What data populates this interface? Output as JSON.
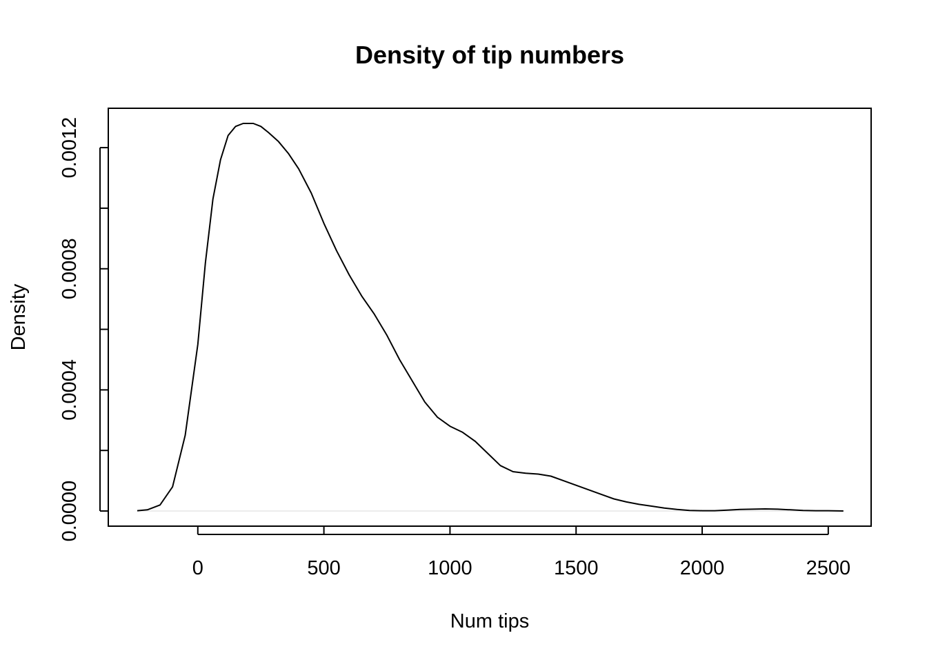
{
  "chart_data": {
    "type": "line",
    "title": "Density of tip numbers",
    "xlabel": "Num tips",
    "ylabel": "Density",
    "xlim": [
      -355,
      2670
    ],
    "ylim": [
      -5e-05,
      0.00133
    ],
    "x_ticks": [
      0,
      500,
      1000,
      1500,
      2000,
      2500
    ],
    "x_tick_labels": [
      "0",
      "500",
      "1000",
      "1500",
      "2000",
      "2500"
    ],
    "y_ticks": [
      0,
      0.0002,
      0.0004,
      0.0006,
      0.0008,
      0.001,
      0.0012
    ],
    "y_tick_labels": [
      "0.0000",
      "",
      "0.0004",
      "",
      "0.0008",
      "",
      "0.0012"
    ],
    "baseline_y": 0,
    "grid": false,
    "series": [
      {
        "x": [
          -240,
          -200,
          -150,
          -100,
          -50,
          0,
          30,
          60,
          90,
          120,
          150,
          180,
          200,
          220,
          250,
          280,
          320,
          360,
          400,
          450,
          500,
          550,
          600,
          650,
          700,
          750,
          800,
          850,
          900,
          950,
          1000,
          1050,
          1100,
          1150,
          1200,
          1250,
          1300,
          1350,
          1400,
          1450,
          1500,
          1550,
          1600,
          1650,
          1700,
          1750,
          1800,
          1850,
          1900,
          1950,
          2000,
          2050,
          2100,
          2150,
          2200,
          2250,
          2300,
          2350,
          2400,
          2450,
          2500,
          2560
        ],
        "y": [
          1e-06,
          4e-06,
          2e-05,
          8e-05,
          0.00025,
          0.00055,
          0.00082,
          0.00103,
          0.00116,
          0.00124,
          0.00127,
          0.00128,
          0.00128,
          0.00128,
          0.00127,
          0.00125,
          0.00122,
          0.00118,
          0.00113,
          0.00105,
          0.00095,
          0.00086,
          0.00078,
          0.00071,
          0.00065,
          0.00058,
          0.0005,
          0.00043,
          0.00036,
          0.00031,
          0.00028,
          0.00026,
          0.00023,
          0.00019,
          0.00015,
          0.00013,
          0.000125,
          0.000122,
          0.000115,
          0.0001,
          8.5e-05,
          7e-05,
          5.5e-05,
          4e-05,
          3e-05,
          2.2e-05,
          1.6e-05,
          1e-05,
          5e-06,
          2e-06,
          1e-06,
          1e-06,
          3e-06,
          5e-06,
          6e-06,
          7e-06,
          6e-06,
          4e-06,
          2e-06,
          1e-06,
          1e-06,
          0.0
        ]
      }
    ]
  }
}
